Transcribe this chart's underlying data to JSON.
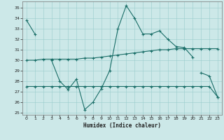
{
  "xlabel": "Humidex (Indice chaleur)",
  "background_color": "#cce8e8",
  "grid_color": "#99cccc",
  "line_color": "#1a6e68",
  "xlim": [
    -0.5,
    23.5
  ],
  "ylim": [
    24.8,
    35.6
  ],
  "yticks": [
    25,
    26,
    27,
    28,
    29,
    30,
    31,
    32,
    33,
    34,
    35
  ],
  "xticks": [
    0,
    1,
    2,
    3,
    4,
    5,
    6,
    7,
    8,
    9,
    10,
    11,
    12,
    13,
    14,
    15,
    16,
    17,
    18,
    19,
    20,
    21,
    22,
    23
  ],
  "series": [
    {
      "x": [
        0,
        1
      ],
      "y": [
        33.8,
        32.5
      ]
    },
    {
      "x": [
        3,
        4,
        5,
        6,
        7,
        8,
        9,
        10,
        11,
        12,
        13,
        14,
        15,
        16,
        17,
        18,
        19,
        20
      ],
      "y": [
        30.0,
        28.0,
        27.2,
        28.2,
        25.3,
        26.0,
        27.3,
        29.0,
        33.0,
        35.2,
        34.0,
        32.5,
        32.5,
        32.8,
        32.0,
        31.3,
        31.2,
        30.3
      ]
    },
    {
      "x": [
        21,
        22,
        23
      ],
      "y": [
        28.8,
        28.5,
        26.5
      ]
    },
    {
      "x": [
        0,
        1,
        2,
        3,
        4,
        5,
        6,
        7,
        8,
        9,
        10,
        11,
        12,
        13,
        14,
        15,
        16,
        17,
        18,
        19,
        20,
        21,
        22,
        23
      ],
      "y": [
        30.0,
        30.0,
        30.1,
        30.1,
        30.1,
        30.1,
        30.1,
        30.2,
        30.2,
        30.3,
        30.4,
        30.5,
        30.6,
        30.7,
        30.8,
        30.9,
        31.0,
        31.0,
        31.1,
        31.1,
        31.1,
        31.1,
        31.1,
        31.1
      ]
    },
    {
      "x": [
        0,
        1,
        2,
        3,
        4,
        5,
        6,
        7,
        8,
        9,
        10,
        11,
        12,
        13,
        14,
        15,
        16,
        17,
        18,
        19,
        20,
        21,
        22,
        23
      ],
      "y": [
        27.5,
        27.5,
        27.5,
        27.5,
        27.5,
        27.5,
        27.5,
        27.5,
        27.5,
        27.5,
        27.5,
        27.5,
        27.5,
        27.5,
        27.5,
        27.5,
        27.5,
        27.5,
        27.5,
        27.5,
        27.5,
        27.5,
        27.5,
        26.5
      ]
    }
  ]
}
